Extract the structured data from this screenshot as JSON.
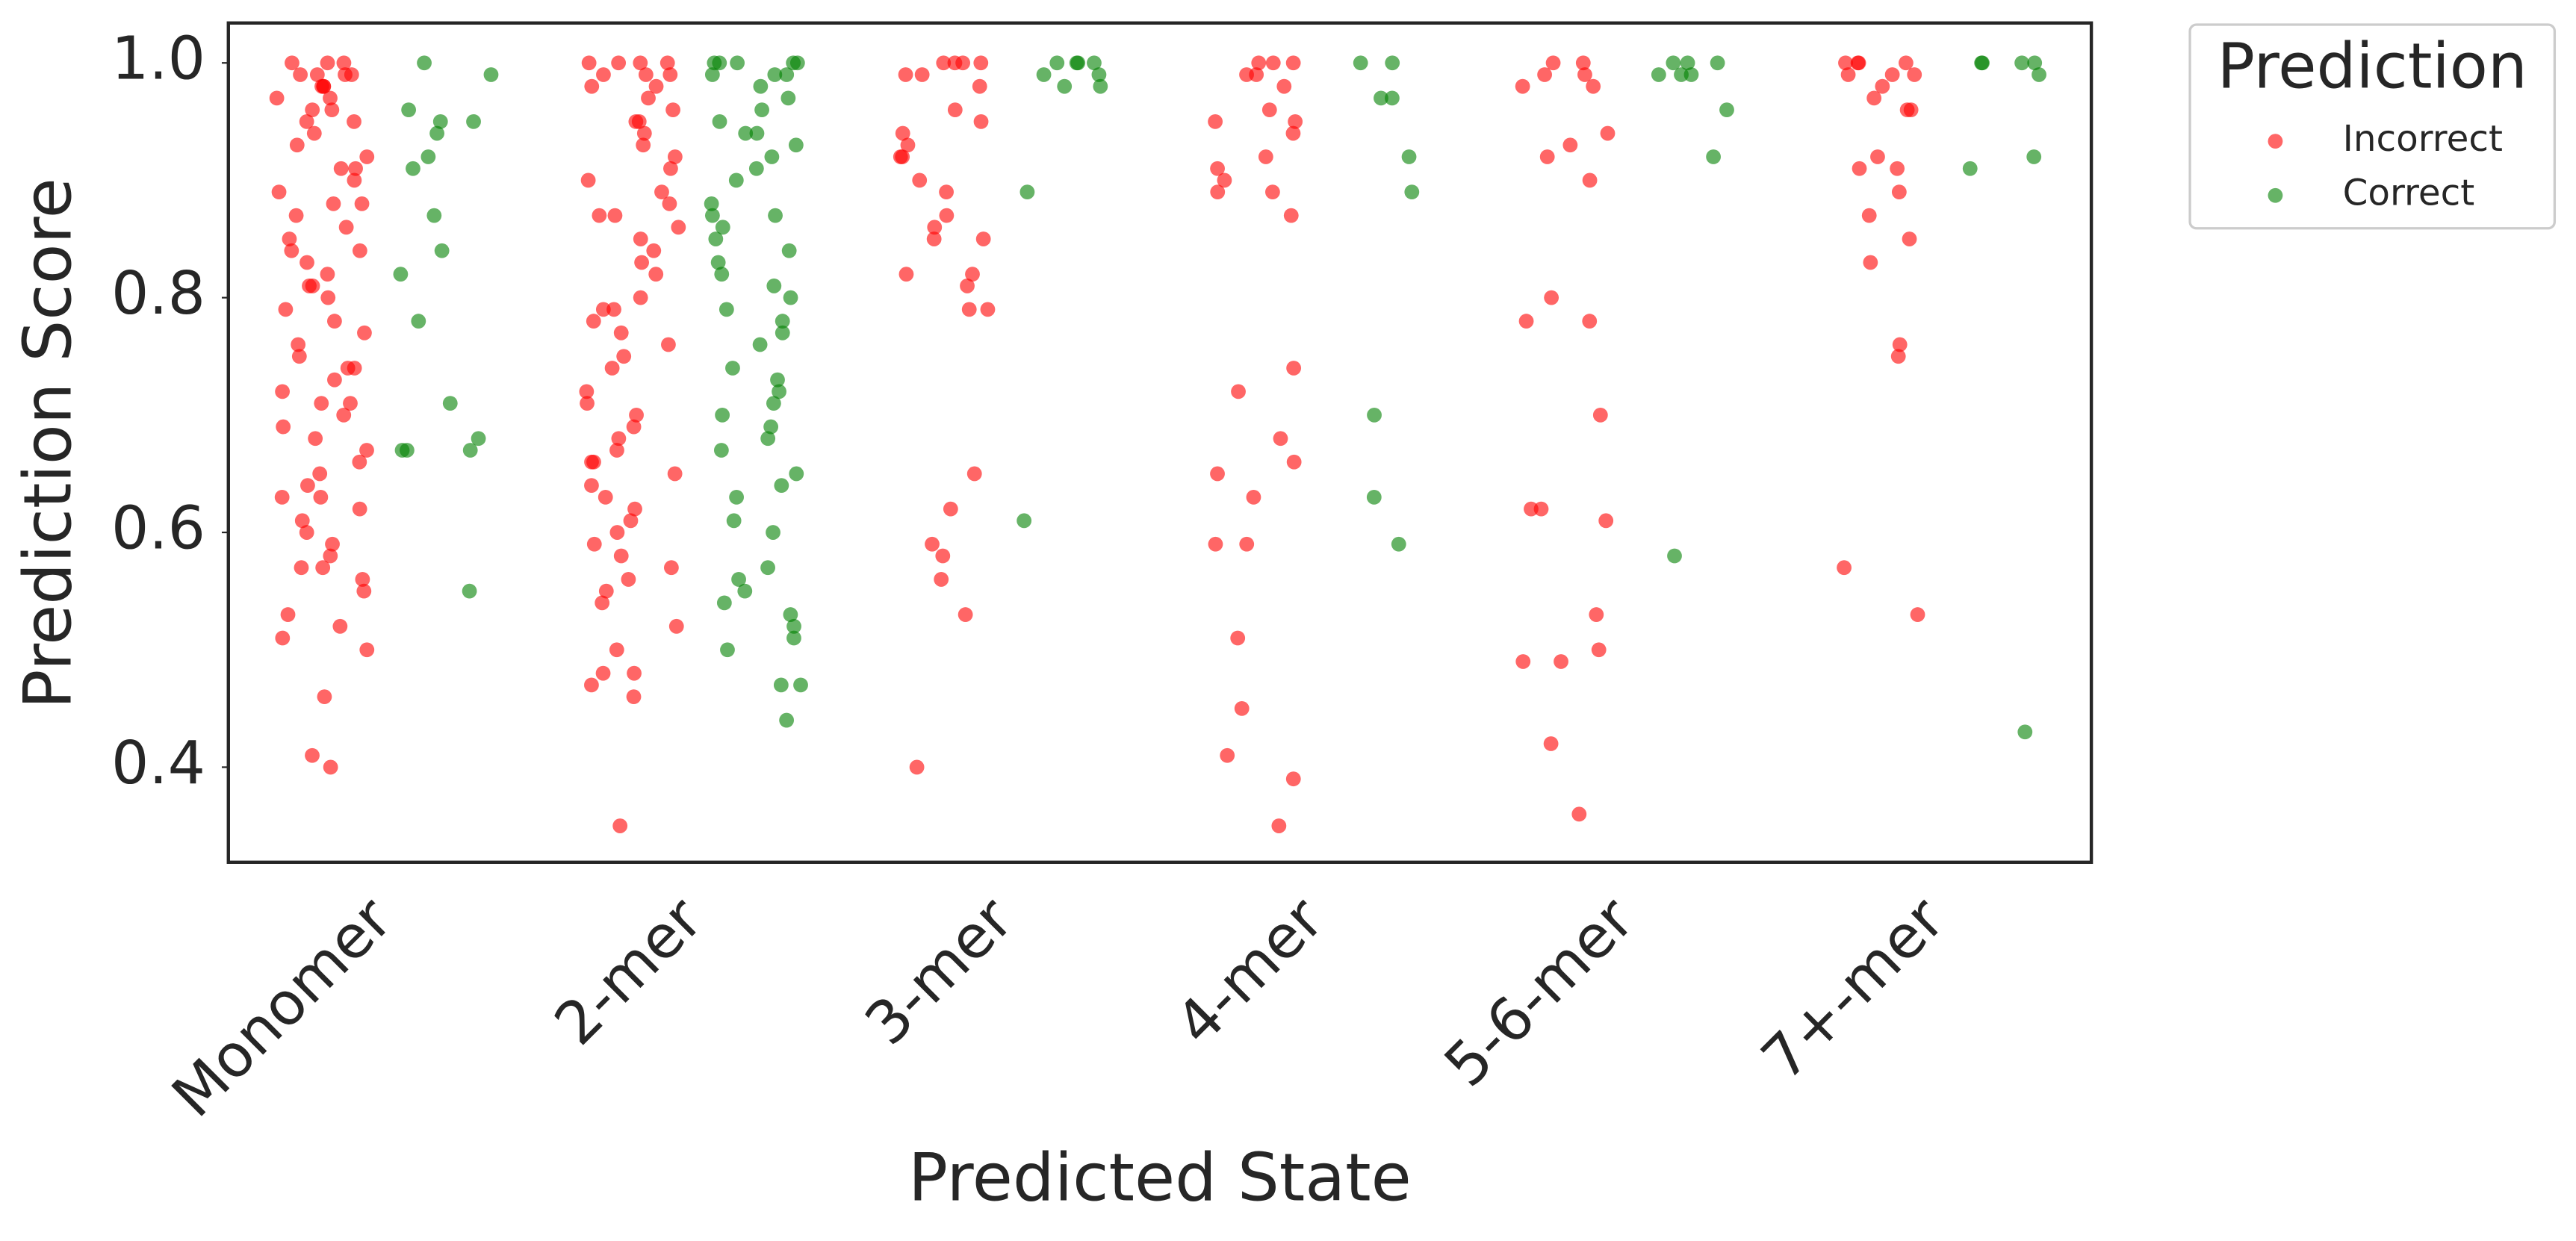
{
  "chart_data": {
    "type": "strip",
    "x_label": "Predicted State",
    "y_label": "Prediction Score",
    "categories": [
      "Monomer",
      "2-mer",
      "3-mer",
      "4-mer",
      "5-6-mer",
      "7+-mer"
    ],
    "legend_title": "Prediction",
    "legend": "outside-right",
    "ylim": [
      0.319,
      1.034
    ],
    "yticks": [
      0.4,
      0.6,
      0.8,
      {
        "value": 1.0,
        "label": "1.0"
      }
    ],
    "series": [
      {
        "name": "Incorrect",
        "color": "#ff0000",
        "values": [
          [
            1.0,
            1.0,
            1.0,
            0.99,
            0.99,
            0.99,
            0.99,
            0.98,
            0.98,
            0.98,
            0.97,
            0.97,
            0.96,
            0.96,
            0.95,
            0.95,
            0.94,
            0.93,
            0.92,
            0.91,
            0.91,
            0.9,
            0.89,
            0.88,
            0.88,
            0.87,
            0.86,
            0.85,
            0.84,
            0.84,
            0.83,
            0.82,
            0.81,
            0.81,
            0.8,
            0.79,
            0.78,
            0.77,
            0.76,
            0.75,
            0.74,
            0.74,
            0.73,
            0.72,
            0.71,
            0.71,
            0.7,
            0.69,
            0.68,
            0.67,
            0.66,
            0.65,
            0.64,
            0.63,
            0.63,
            0.62,
            0.61,
            0.6,
            0.59,
            0.58,
            0.57,
            0.57,
            0.56,
            0.55,
            0.53,
            0.52,
            0.51,
            0.5,
            0.46,
            0.41,
            0.4
          ],
          [
            1.0,
            1.0,
            1.0,
            1.0,
            0.99,
            0.99,
            0.99,
            0.98,
            0.98,
            0.97,
            0.96,
            0.95,
            0.95,
            0.94,
            0.93,
            0.92,
            0.91,
            0.9,
            0.89,
            0.88,
            0.87,
            0.87,
            0.86,
            0.85,
            0.84,
            0.83,
            0.82,
            0.8,
            0.79,
            0.79,
            0.78,
            0.77,
            0.76,
            0.75,
            0.74,
            0.72,
            0.71,
            0.7,
            0.69,
            0.68,
            0.67,
            0.66,
            0.66,
            0.65,
            0.64,
            0.63,
            0.62,
            0.61,
            0.6,
            0.59,
            0.58,
            0.57,
            0.56,
            0.55,
            0.54,
            0.52,
            0.5,
            0.48,
            0.48,
            0.47,
            0.46,
            0.35
          ],
          [
            1.0,
            1.0,
            1.0,
            1.0,
            0.99,
            0.99,
            0.98,
            0.96,
            0.95,
            0.94,
            0.93,
            0.92,
            0.92,
            0.9,
            0.89,
            0.87,
            0.86,
            0.85,
            0.85,
            0.82,
            0.82,
            0.81,
            0.79,
            0.79,
            0.65,
            0.62,
            0.59,
            0.58,
            0.56,
            0.53,
            0.4
          ],
          [
            1.0,
            1.0,
            1.0,
            0.99,
            0.99,
            0.98,
            0.96,
            0.95,
            0.95,
            0.94,
            0.92,
            0.91,
            0.9,
            0.89,
            0.89,
            0.87,
            0.74,
            0.72,
            0.68,
            0.66,
            0.65,
            0.63,
            0.59,
            0.59,
            0.51,
            0.45,
            0.41,
            0.39,
            0.35
          ],
          [
            1.0,
            1.0,
            0.99,
            0.99,
            0.98,
            0.98,
            0.94,
            0.93,
            0.92,
            0.9,
            0.8,
            0.78,
            0.78,
            0.7,
            0.62,
            0.62,
            0.61,
            0.53,
            0.5,
            0.49,
            0.49,
            0.42,
            0.36
          ],
          [
            1.0,
            1.0,
            1.0,
            1.0,
            0.99,
            0.99,
            0.99,
            0.98,
            0.97,
            0.96,
            0.96,
            0.92,
            0.91,
            0.91,
            0.89,
            0.87,
            0.85,
            0.83,
            0.76,
            0.75,
            0.57,
            0.53
          ]
        ]
      },
      {
        "name": "Correct",
        "color": "#008000",
        "values": [
          [
            1.0,
            0.99,
            0.96,
            0.95,
            0.95,
            0.94,
            0.92,
            0.91,
            0.87,
            0.84,
            0.82,
            0.78,
            0.71,
            0.68,
            0.67,
            0.67,
            0.67,
            0.55
          ],
          [
            1.0,
            1.0,
            1.0,
            1.0,
            1.0,
            0.99,
            0.99,
            0.99,
            0.98,
            0.97,
            0.96,
            0.95,
            0.94,
            0.94,
            0.93,
            0.92,
            0.91,
            0.9,
            0.88,
            0.87,
            0.87,
            0.86,
            0.85,
            0.84,
            0.83,
            0.82,
            0.81,
            0.8,
            0.79,
            0.78,
            0.77,
            0.76,
            0.74,
            0.73,
            0.72,
            0.71,
            0.7,
            0.69,
            0.68,
            0.67,
            0.65,
            0.64,
            0.63,
            0.61,
            0.6,
            0.57,
            0.56,
            0.55,
            0.54,
            0.53,
            0.52,
            0.51,
            0.5,
            0.47,
            0.47,
            0.44
          ],
          [
            1.0,
            1.0,
            1.0,
            1.0,
            0.99,
            0.99,
            0.98,
            0.98,
            0.89,
            0.61
          ],
          [
            1.0,
            1.0,
            0.97,
            0.97,
            0.92,
            0.89,
            0.7,
            0.63,
            0.59
          ],
          [
            1.0,
            1.0,
            1.0,
            0.99,
            0.99,
            0.99,
            0.96,
            0.92,
            0.58
          ],
          [
            1.0,
            1.0,
            1.0,
            1.0,
            0.99,
            0.92,
            0.91,
            0.43
          ]
        ]
      }
    ]
  }
}
